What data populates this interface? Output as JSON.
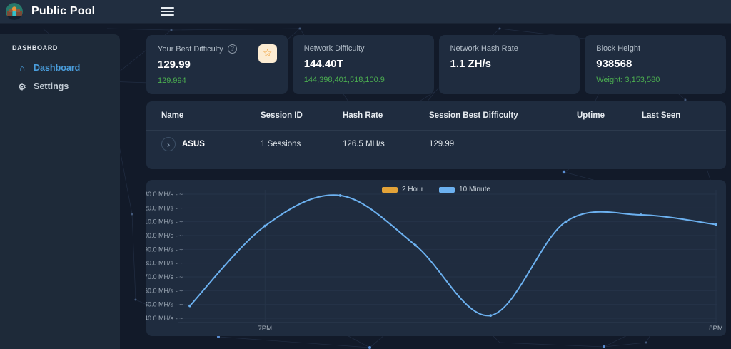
{
  "header": {
    "app_title": "Public Pool"
  },
  "sidebar": {
    "section_label": "DASHBOARD",
    "items": [
      {
        "label": "Dashboard",
        "icon": "home",
        "active": true
      },
      {
        "label": "Settings",
        "icon": "gear",
        "active": false
      }
    ]
  },
  "stat_cards": [
    {
      "label": "Your Best Difficulty",
      "value": "129.99",
      "sub": "129.994",
      "star_icon": "star"
    },
    {
      "label": "Network Difficulty",
      "value": "144.40T",
      "sub": "144,398,401,518,100.9"
    },
    {
      "label": "Network Hash Rate",
      "value": "1.1 ZH/s",
      "sub": ""
    },
    {
      "label": "Block Height",
      "value": "938568",
      "sub": "Weight: 3,153,580"
    }
  ],
  "workers_table": {
    "columns": [
      "Name",
      "Session ID",
      "Hash Rate",
      "Session Best Difficulty",
      "Uptime",
      "Last Seen"
    ],
    "rows": [
      {
        "name": "ASUS",
        "session_id": "1 Sessions",
        "hash_rate": "126.5 MH/s",
        "session_best_difficulty": "129.99",
        "uptime": "",
        "last_seen": ""
      }
    ],
    "expand_glyph": "›"
  },
  "chart_data": {
    "type": "line",
    "title": "",
    "xlabel": "",
    "ylabel": "MH/s",
    "ylim": [
      40,
      130
    ],
    "xlim_minutes": [
      0,
      70
    ],
    "x_unit": "minutes after 6:50 PM",
    "grid": true,
    "legend_position": "top",
    "legend": [
      {
        "label": "2 Hour",
        "color": "#e3a338"
      },
      {
        "label": "10 Minute",
        "color": "#6cb1f0"
      }
    ],
    "yticks": [
      "130.0 MH/s",
      "120.0 MH/s",
      "110.0 MH/s",
      "100.0 MH/s",
      "90.0 MH/s",
      "80.0 MH/s",
      "70.0 MH/s",
      "60.0 MH/s",
      "50.0 MH/s",
      "40.0 MH/s"
    ],
    "ytick_suffix": "- ~",
    "xticks": [
      {
        "label": "7PM",
        "minute": 10
      },
      {
        "label": "8PM",
        "minute": 70
      }
    ],
    "series": [
      {
        "name": "2 Hour",
        "color": "#e3a338",
        "x_minutes": [],
        "values": []
      },
      {
        "name": "10 Minute",
        "color": "#6cb1f0",
        "x_minutes": [
          0,
          10,
          20,
          30,
          40,
          50,
          60,
          70
        ],
        "values": [
          49,
          107,
          129,
          93,
          42,
          110,
          115,
          108
        ]
      }
    ]
  },
  "colors": {
    "accent_green": "#4caf50",
    "link_blue": "#4a9edd",
    "line_blue": "#6cb1f0",
    "legend_orange": "#e3a338",
    "star_orange": "#ef9b2f",
    "panel_bg": "#1f2c3f",
    "header_bg": "#212e40",
    "page_bg": "#121a29"
  },
  "icons": {
    "home": "⌂",
    "gear": "⚙",
    "star": "☆",
    "help": "?"
  }
}
